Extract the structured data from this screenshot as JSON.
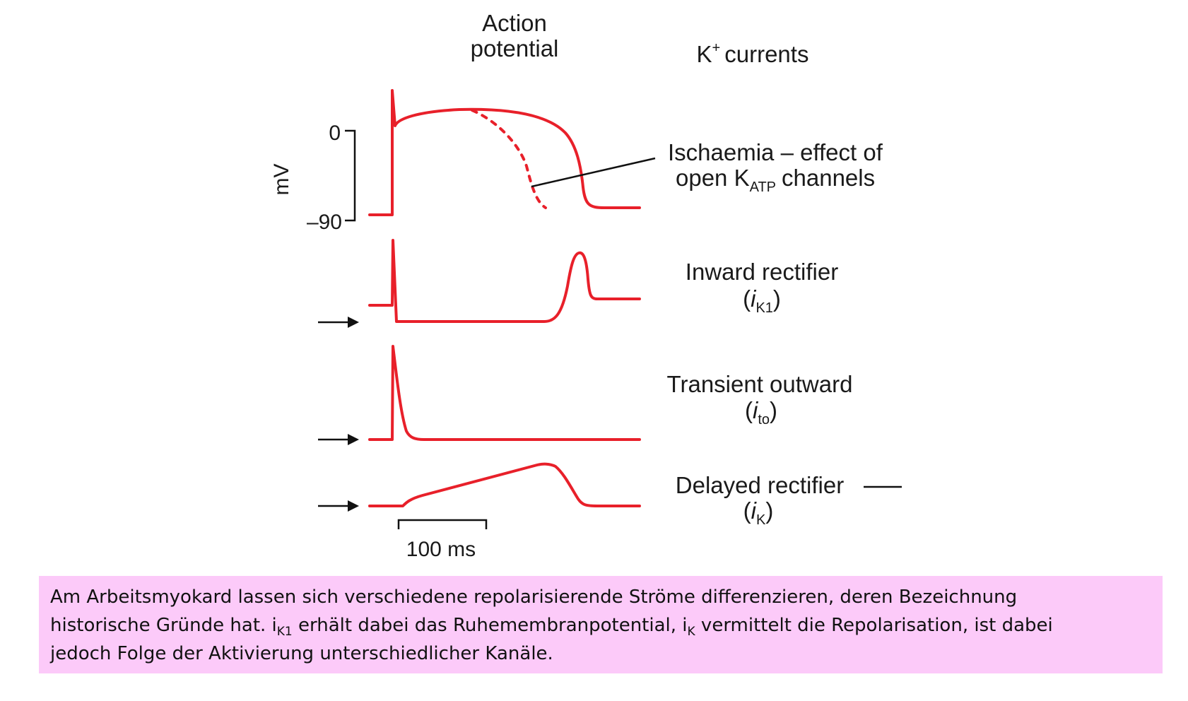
{
  "headers": {
    "action_potential_line1": "Action",
    "action_potential_line2": "potential",
    "k_currents_prefix": "K",
    "k_currents_sup": "+",
    "k_currents_suffix": "currents"
  },
  "axis": {
    "unit": "mV",
    "tick_top": "0",
    "tick_bottom": "–90"
  },
  "labels": {
    "ischaemia_line1": "Ischaemia – effect of",
    "ischaemia_line2_prefix": "open K",
    "ischaemia_line2_sub": "ATP",
    "ischaemia_line2_suffix": "channels",
    "ik1_name": "Inward rectifier",
    "ik1_open": "(",
    "ik1_i": "i",
    "ik1_sub": "K1",
    "ik1_close": ")",
    "ito_name": "Transient outward",
    "ito_open": "(",
    "ito_i": "i",
    "ito_sub": "to",
    "ito_close": ")",
    "ik_name": "Delayed rectifier",
    "ik_open": "(",
    "ik_i": "i",
    "ik_sub": "K",
    "ik_close": ")"
  },
  "scale_bar": {
    "label": "100 ms"
  },
  "colors": {
    "trace": "#e8202a",
    "caption_bg": "#fccaf9"
  },
  "caption": {
    "line1": "Am Arbeitsmyokard lassen sich verschiedene repolarisierende Ströme differenzieren, deren Bezeichnung",
    "line2_a": "historische Gründe hat. i",
    "line2_sub1": "K1",
    "line2_b": " erhält dabei das Ruhemembranpotential, i",
    "line2_sub2": "K",
    "line2_c": " vermittelt die Repolarisation, ist dabei",
    "line3": "jedoch Folge der Aktivierung unterschiedlicher Kanäle."
  }
}
